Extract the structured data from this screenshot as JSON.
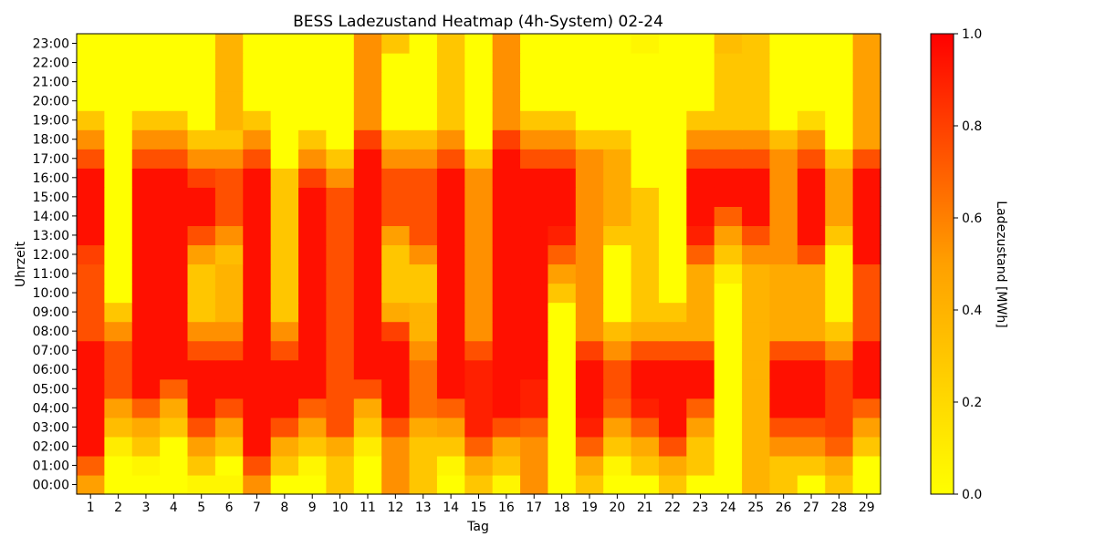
{
  "chart_data": {
    "type": "heatmap",
    "title": "BESS Ladezustand Heatmap (4h-System) 02-24",
    "xlabel": "Tag",
    "ylabel": "Uhrzeit",
    "colorbar_label": "Ladezustand [MWh]",
    "colorbar_ticks": [
      "0.0",
      "0.2",
      "0.4",
      "0.6",
      "0.8",
      "1.0"
    ],
    "vmin": 0.0,
    "vmax": 1.0,
    "colormap": [
      "#ffff00",
      "#ffa000",
      "#ff0000"
    ],
    "days": [
      "1",
      "2",
      "3",
      "4",
      "5",
      "6",
      "7",
      "8",
      "9",
      "10",
      "11",
      "12",
      "13",
      "14",
      "15",
      "16",
      "17",
      "18",
      "19",
      "20",
      "21",
      "22",
      "23",
      "24",
      "25",
      "26",
      "27",
      "28",
      "29"
    ],
    "hours": [
      "00:00",
      "01:00",
      "02:00",
      "03:00",
      "04:00",
      "05:00",
      "06:00",
      "07:00",
      "08:00",
      "09:00",
      "10:00",
      "11:00",
      "12:00",
      "13:00",
      "14:00",
      "15:00",
      "16:00",
      "17:00",
      "18:00",
      "19:00",
      "20:00",
      "21:00",
      "22:00",
      "23:00"
    ],
    "values": [
      [
        0.5,
        0.0,
        0.0,
        0.0,
        0.05,
        0.05,
        0.55,
        0.0,
        0.0,
        0.3,
        0.0,
        0.55,
        0.3,
        0.0,
        0.3,
        0.05,
        0.55,
        0.0,
        0.3,
        0.0,
        0.0,
        0.3,
        0.0,
        0.0,
        0.4,
        0.3,
        0.0,
        0.3,
        0.0
      ],
      [
        0.7,
        0.0,
        0.05,
        0.0,
        0.3,
        0.0,
        0.75,
        0.3,
        0.05,
        0.3,
        0.0,
        0.55,
        0.3,
        0.05,
        0.45,
        0.3,
        0.55,
        0.0,
        0.45,
        0.05,
        0.3,
        0.45,
        0.3,
        0.0,
        0.4,
        0.3,
        0.3,
        0.45,
        0.0
      ],
      [
        0.95,
        0.1,
        0.3,
        0.0,
        0.5,
        0.3,
        0.95,
        0.45,
        0.3,
        0.45,
        0.1,
        0.55,
        0.3,
        0.3,
        0.7,
        0.45,
        0.55,
        0.0,
        0.7,
        0.3,
        0.45,
        0.75,
        0.3,
        0.0,
        0.4,
        0.55,
        0.55,
        0.7,
        0.3
      ],
      [
        0.95,
        0.35,
        0.45,
        0.3,
        0.75,
        0.5,
        0.95,
        0.75,
        0.5,
        0.75,
        0.3,
        0.75,
        0.45,
        0.5,
        0.9,
        0.75,
        0.7,
        0.0,
        0.9,
        0.5,
        0.7,
        0.95,
        0.5,
        0.0,
        0.4,
        0.75,
        0.75,
        0.8,
        0.5
      ],
      [
        0.95,
        0.5,
        0.7,
        0.45,
        0.95,
        0.75,
        0.95,
        0.95,
        0.7,
        0.75,
        0.45,
        0.95,
        0.65,
        0.7,
        0.9,
        0.95,
        0.9,
        0.0,
        0.95,
        0.7,
        0.9,
        0.95,
        0.7,
        0.0,
        0.4,
        0.95,
        0.95,
        0.8,
        0.7
      ],
      [
        0.95,
        0.75,
        0.95,
        0.7,
        0.95,
        0.95,
        0.95,
        0.95,
        0.95,
        0.75,
        0.75,
        0.95,
        0.65,
        0.95,
        0.9,
        0.95,
        0.9,
        0.0,
        0.95,
        0.75,
        0.95,
        0.95,
        0.95,
        0.0,
        0.4,
        0.95,
        0.95,
        0.8,
        0.95
      ],
      [
        0.95,
        0.75,
        0.95,
        0.95,
        0.95,
        0.95,
        0.95,
        0.95,
        0.95,
        0.75,
        0.95,
        0.95,
        0.65,
        0.95,
        0.9,
        0.95,
        0.95,
        0.0,
        0.95,
        0.75,
        0.95,
        0.95,
        0.95,
        0.0,
        0.4,
        0.95,
        0.95,
        0.8,
        0.95
      ],
      [
        0.95,
        0.75,
        0.95,
        0.95,
        0.75,
        0.75,
        0.95,
        0.75,
        0.95,
        0.75,
        0.95,
        0.95,
        0.55,
        0.95,
        0.75,
        0.95,
        0.95,
        0.0,
        0.8,
        0.55,
        0.75,
        0.75,
        0.75,
        0.0,
        0.4,
        0.75,
        0.75,
        0.55,
        0.95
      ],
      [
        0.75,
        0.55,
        0.95,
        0.95,
        0.55,
        0.55,
        0.95,
        0.55,
        0.95,
        0.75,
        0.95,
        0.8,
        0.4,
        0.95,
        0.55,
        0.95,
        0.95,
        0.0,
        0.55,
        0.35,
        0.45,
        0.45,
        0.45,
        0.0,
        0.4,
        0.45,
        0.45,
        0.3,
        0.75
      ],
      [
        0.75,
        0.3,
        0.95,
        0.95,
        0.3,
        0.4,
        0.95,
        0.3,
        0.95,
        0.75,
        0.95,
        0.45,
        0.4,
        0.95,
        0.55,
        0.95,
        0.95,
        0.0,
        0.55,
        0.0,
        0.3,
        0.3,
        0.45,
        0.0,
        0.4,
        0.45,
        0.45,
        0.05,
        0.75
      ],
      [
        0.75,
        0.0,
        0.95,
        0.95,
        0.3,
        0.4,
        0.95,
        0.3,
        0.95,
        0.75,
        0.95,
        0.3,
        0.3,
        0.95,
        0.55,
        0.95,
        0.95,
        0.3,
        0.55,
        0.0,
        0.3,
        0.0,
        0.45,
        0.0,
        0.4,
        0.45,
        0.45,
        0.05,
        0.75
      ],
      [
        0.75,
        0.0,
        0.95,
        0.95,
        0.3,
        0.4,
        0.95,
        0.3,
        0.95,
        0.75,
        0.95,
        0.3,
        0.3,
        0.95,
        0.55,
        0.95,
        0.95,
        0.5,
        0.55,
        0.0,
        0.3,
        0.0,
        0.45,
        0.1,
        0.4,
        0.45,
        0.45,
        0.05,
        0.75
      ],
      [
        0.8,
        0.0,
        0.95,
        0.95,
        0.5,
        0.35,
        0.95,
        0.3,
        0.95,
        0.75,
        0.95,
        0.3,
        0.55,
        0.95,
        0.55,
        0.95,
        0.95,
        0.7,
        0.55,
        0.0,
        0.3,
        0.0,
        0.7,
        0.3,
        0.55,
        0.55,
        0.75,
        0.05,
        0.95
      ],
      [
        0.95,
        0.0,
        0.95,
        0.95,
        0.75,
        0.55,
        0.95,
        0.3,
        0.95,
        0.75,
        0.95,
        0.5,
        0.75,
        0.95,
        0.55,
        0.95,
        0.95,
        0.9,
        0.55,
        0.3,
        0.3,
        0.0,
        0.9,
        0.5,
        0.75,
        0.55,
        0.95,
        0.3,
        0.95
      ],
      [
        0.95,
        0.0,
        0.95,
        0.95,
        0.95,
        0.75,
        0.95,
        0.3,
        0.95,
        0.75,
        0.95,
        0.75,
        0.75,
        0.95,
        0.55,
        0.95,
        0.95,
        0.95,
        0.55,
        0.45,
        0.3,
        0.0,
        0.95,
        0.7,
        0.95,
        0.55,
        0.95,
        0.5,
        0.95
      ],
      [
        0.95,
        0.0,
        0.95,
        0.95,
        0.95,
        0.75,
        0.95,
        0.3,
        0.95,
        0.75,
        0.95,
        0.75,
        0.75,
        0.95,
        0.55,
        0.95,
        0.95,
        0.95,
        0.55,
        0.45,
        0.3,
        0.0,
        0.95,
        0.95,
        0.95,
        0.55,
        0.95,
        0.5,
        0.95
      ],
      [
        0.95,
        0.0,
        0.95,
        0.95,
        0.8,
        0.75,
        0.95,
        0.3,
        0.8,
        0.55,
        0.95,
        0.75,
        0.75,
        0.95,
        0.55,
        0.95,
        0.95,
        0.95,
        0.55,
        0.45,
        0.0,
        0.0,
        0.95,
        0.95,
        0.95,
        0.55,
        0.95,
        0.5,
        0.95
      ],
      [
        0.75,
        0.0,
        0.75,
        0.75,
        0.55,
        0.55,
        0.75,
        0.0,
        0.55,
        0.3,
        0.95,
        0.55,
        0.55,
        0.75,
        0.3,
        0.95,
        0.75,
        0.75,
        0.55,
        0.45,
        0.0,
        0.0,
        0.75,
        0.75,
        0.75,
        0.55,
        0.75,
        0.3,
        0.75
      ],
      [
        0.55,
        0.0,
        0.55,
        0.55,
        0.3,
        0.3,
        0.55,
        0.0,
        0.3,
        0.0,
        0.8,
        0.35,
        0.35,
        0.55,
        0.0,
        0.8,
        0.55,
        0.55,
        0.3,
        0.3,
        0.0,
        0.0,
        0.55,
        0.55,
        0.55,
        0.35,
        0.55,
        0.0,
        0.5
      ],
      [
        0.3,
        0.0,
        0.3,
        0.3,
        0.0,
        0.4,
        0.3,
        0.0,
        0.0,
        0.0,
        0.55,
        0.0,
        0.0,
        0.3,
        0.0,
        0.55,
        0.3,
        0.3,
        0.0,
        0.0,
        0.0,
        0.0,
        0.3,
        0.3,
        0.3,
        0.0,
        0.2,
        0.0,
        0.5
      ],
      [
        0.0,
        0.0,
        0.0,
        0.0,
        0.0,
        0.4,
        0.0,
        0.0,
        0.0,
        0.0,
        0.55,
        0.0,
        0.0,
        0.3,
        0.0,
        0.55,
        0.0,
        0.0,
        0.0,
        0.0,
        0.0,
        0.0,
        0.0,
        0.3,
        0.3,
        0.0,
        0.0,
        0.0,
        0.5
      ],
      [
        0.0,
        0.0,
        0.0,
        0.0,
        0.0,
        0.4,
        0.0,
        0.0,
        0.0,
        0.0,
        0.55,
        0.0,
        0.0,
        0.3,
        0.0,
        0.55,
        0.0,
        0.0,
        0.0,
        0.0,
        0.0,
        0.0,
        0.0,
        0.3,
        0.3,
        0.0,
        0.0,
        0.0,
        0.5
      ],
      [
        0.0,
        0.0,
        0.0,
        0.0,
        0.0,
        0.4,
        0.0,
        0.0,
        0.0,
        0.0,
        0.55,
        0.0,
        0.0,
        0.3,
        0.0,
        0.55,
        0.0,
        0.0,
        0.0,
        0.0,
        0.0,
        0.0,
        0.0,
        0.3,
        0.3,
        0.0,
        0.0,
        0.0,
        0.5
      ],
      [
        0.0,
        0.0,
        0.0,
        0.0,
        0.0,
        0.4,
        0.0,
        0.0,
        0.0,
        0.0,
        0.55,
        0.3,
        0.0,
        0.3,
        0.0,
        0.55,
        0.0,
        0.0,
        0.0,
        0.0,
        0.05,
        0.0,
        0.0,
        0.35,
        0.3,
        0.0,
        0.0,
        0.0,
        0.5
      ]
    ]
  }
}
